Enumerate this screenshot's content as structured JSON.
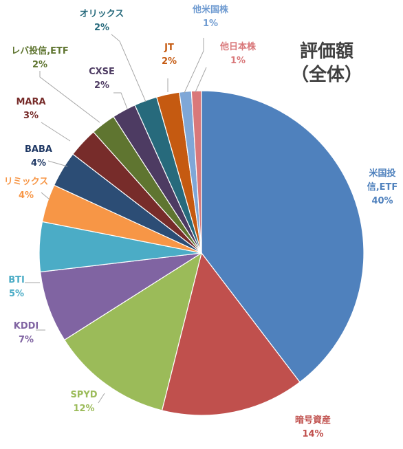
{
  "chart_data": {
    "type": "pie",
    "title_line1": "評価額",
    "title_line2": "（全体）",
    "slices": [
      {
        "name": "米国投信,ETF",
        "label_lines": [
          "米国投",
          "信,ETF"
        ],
        "pct_label": "40%",
        "value": 40.0,
        "color": "#4f81bd",
        "label_color": "#4f81bd"
      },
      {
        "name": "暗号資産",
        "label_lines": [
          "暗号資産"
        ],
        "pct_label": "14%",
        "value": 14.4,
        "color": "#c0504d",
        "label_color": "#c0504d"
      },
      {
        "name": "SPYD",
        "label_lines": [
          "SPYD"
        ],
        "pct_label": "12%",
        "value": 12.2,
        "color": "#9bbb59",
        "label_color": "#9bbb59"
      },
      {
        "name": "KDDI",
        "label_lines": [
          "KDDI"
        ],
        "pct_label": "7%",
        "value": 7.2,
        "color": "#8064a2",
        "label_color": "#8064a2"
      },
      {
        "name": "BTI",
        "label_lines": [
          "BTI"
        ],
        "pct_label": "5%",
        "value": 5.0,
        "color": "#4bacc6",
        "label_color": "#4bacc6"
      },
      {
        "name": "リミックス",
        "label_lines": [
          "リミックス"
        ],
        "pct_label": "4%",
        "value": 3.8,
        "color": "#f79646",
        "label_color": "#f79646"
      },
      {
        "name": "BABA",
        "label_lines": [
          "BABA"
        ],
        "pct_label": "4%",
        "value": 3.6,
        "color": "#2c4d75",
        "label_color": "#1f3864"
      },
      {
        "name": "MARA",
        "label_lines": [
          "MARA"
        ],
        "pct_label": "3%",
        "value": 3.0,
        "color": "#772c2a",
        "label_color": "#772c2a"
      },
      {
        "name": "レバ投信,ETF",
        "label_lines": [
          "レバ投信,ETF"
        ],
        "pct_label": "2%",
        "value": 2.5,
        "color": "#5f7530",
        "label_color": "#5f7530"
      },
      {
        "name": "CXSE",
        "label_lines": [
          "CXSE"
        ],
        "pct_label": "2%",
        "value": 2.4,
        "color": "#4d3b62",
        "label_color": "#4d3b62"
      },
      {
        "name": "オリックス",
        "label_lines": [
          "オリックス"
        ],
        "pct_label": "2%",
        "value": 2.3,
        "color": "#276a7c",
        "label_color": "#276a7c"
      },
      {
        "name": "JT",
        "label_lines": [
          "JT"
        ],
        "pct_label": "2%",
        "value": 2.3,
        "color": "#c55a11",
        "label_color": "#c55a11"
      },
      {
        "name": "他米国株",
        "label_lines": [
          "他米国株"
        ],
        "pct_label": "1%",
        "value": 1.2,
        "color": "#7fa7d7",
        "label_color": "#6f9bd1"
      },
      {
        "name": "他日本株",
        "label_lines": [
          "他日本株"
        ],
        "pct_label": "1%",
        "value": 1.0,
        "color": "#d9787a",
        "label_color": "#d9787a"
      }
    ]
  }
}
